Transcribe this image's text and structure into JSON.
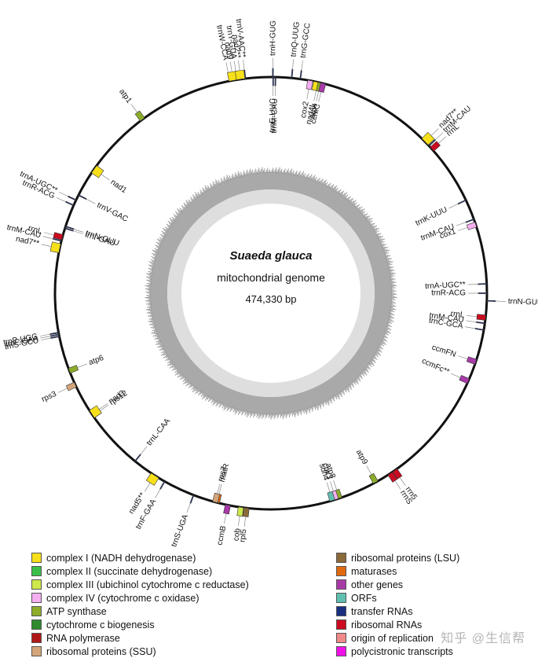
{
  "center": {
    "title": "Suaeda glauca",
    "subtitle": "mitochondrial genome",
    "size": "474,330 bp"
  },
  "genes": [
    {
      "id": "trnW-CCA",
      "label": "trnW-CCA",
      "cat": "trna",
      "pos": 349.0,
      "side": "out"
    },
    {
      "id": "nad9",
      "label": "nad9",
      "cat": "complexI",
      "pos": 350.0,
      "side": "out"
    },
    {
      "id": "trnY-GUA",
      "label": "trnY-GUA",
      "cat": "trna",
      "pos": 351.0,
      "side": "out"
    },
    {
      "id": "nad2",
      "label": "nad2**",
      "cat": "complexI",
      "pos": 352.0,
      "side": "out"
    },
    {
      "id": "trnV-AAC",
      "label": "trnV-AAC**",
      "cat": "trna",
      "pos": 353.2,
      "side": "out"
    },
    {
      "id": "trnH-GUG",
      "label": "trnH-GUG",
      "cat": "trna",
      "pos": 0.5,
      "side": "out"
    },
    {
      "id": "trnQ-UUG",
      "label": "trnQ-UUG",
      "cat": "trna",
      "pos": 5.5,
      "side": "out"
    },
    {
      "id": "trnG-GCC",
      "label": "trnG-GCC",
      "cat": "trna",
      "pos": 7.8,
      "side": "out"
    },
    {
      "id": "trnE-UUC",
      "label": "trnE-UUC",
      "cat": "trna",
      "pos": 0.6,
      "side": "in"
    },
    {
      "id": "trnM-CAU-1",
      "label": "trnM-CAU",
      "cat": "trna",
      "pos": 1.2,
      "side": "in"
    },
    {
      "id": "cox2",
      "label": "cox2",
      "cat": "complexIV",
      "pos": 10.5,
      "side": "in"
    },
    {
      "id": "nad4L",
      "label": "nad4L",
      "cat": "complexI",
      "pos": 12.6,
      "side": "in"
    },
    {
      "id": "atp4",
      "label": "atp4",
      "cat": "atp",
      "pos": 13.3,
      "side": "in"
    },
    {
      "id": "ccmC",
      "label": "ccmC",
      "cat": "other",
      "pos": 14.0,
      "side": "in"
    },
    {
      "id": "nad7-1",
      "label": "nad7**",
      "cat": "complexI",
      "pos": 45.5,
      "side": "out"
    },
    {
      "id": "rrnL-1",
      "label": "rrnL",
      "cat": "rrna",
      "pos": 48.2,
      "side": "out"
    },
    {
      "id": "trnM-CAU-2",
      "label": "trnM-CAU",
      "cat": "trna",
      "pos": 47.0,
      "side": "out"
    },
    {
      "id": "trnK-UUU",
      "label": "trnK-UUU",
      "cat": "trna",
      "pos": 64.5,
      "side": "in"
    },
    {
      "id": "trnM-CAU-3",
      "label": "trnM-CAU",
      "cat": "trna",
      "pos": 70.0,
      "side": "in"
    },
    {
      "id": "cox1",
      "label": "cox1",
      "cat": "complexIV",
      "pos": 71.5,
      "side": "in"
    },
    {
      "id": "trnA-UGC-1",
      "label": "trnA-UGC**",
      "cat": "trna",
      "pos": 87.5,
      "side": "in"
    },
    {
      "id": "trnR-ACG-1",
      "label": "trnR-ACG",
      "cat": "trna",
      "pos": 90.0,
      "side": "in"
    },
    {
      "id": "trnN-GUU-1",
      "label": "trnN-GUU",
      "cat": "trna",
      "pos": 92.0,
      "side": "out"
    },
    {
      "id": "rrnL-2",
      "label": "rrnL",
      "cat": "rrna",
      "pos": 96.5,
      "side": "in"
    },
    {
      "id": "trnM-CAU-4",
      "label": "trnM-CAU",
      "cat": "trna",
      "pos": 98.0,
      "side": "in"
    },
    {
      "id": "trnC-GCA",
      "label": "trnC-GCA",
      "cat": "trna",
      "pos": 99.8,
      "side": "in"
    },
    {
      "id": "ccmFN",
      "label": "ccmFN",
      "cat": "other",
      "pos": 108.5,
      "side": "in"
    },
    {
      "id": "ccmFc",
      "label": "ccmFc**",
      "cat": "other",
      "pos": 114.0,
      "side": "in"
    },
    {
      "id": "rrn5",
      "label": "rrn5",
      "cat": "rrna",
      "pos": 145.0,
      "side": "out"
    },
    {
      "id": "rrnS",
      "label": "rrnS",
      "cat": "rrna",
      "pos": 146.5,
      "side": "out"
    },
    {
      "id": "atp9",
      "label": "atp9",
      "cat": "atp",
      "pos": 151.0,
      "side": "in"
    },
    {
      "id": "atp8",
      "label": "atp8",
      "cat": "atp",
      "pos": 161.5,
      "side": "in"
    },
    {
      "id": "cox3",
      "label": "cox3",
      "cat": "complexIV",
      "pos": 162.5,
      "side": "in"
    },
    {
      "id": "sdh4",
      "label": "sdh4",
      "cat": "orf",
      "pos": 163.5,
      "side": "in"
    },
    {
      "id": "rpl5",
      "label": "rpl5",
      "cat": "rpl",
      "pos": 186.5,
      "side": "out"
    },
    {
      "id": "cob",
      "label": "cob",
      "cat": "complexIII",
      "pos": 188.0,
      "side": "out"
    },
    {
      "id": "ccmB",
      "label": "ccmB",
      "cat": "other",
      "pos": 191.5,
      "side": "out"
    },
    {
      "id": "matR",
      "label": "matR",
      "cat": "maturase",
      "pos": 194.5,
      "side": "in"
    },
    {
      "id": "rps7",
      "label": "rps7",
      "cat": "rps",
      "pos": 195.0,
      "side": "in"
    },
    {
      "id": "trnS-UGA",
      "label": "trnS-UGA",
      "cat": "trna",
      "pos": 201.0,
      "side": "out"
    },
    {
      "id": "trnF-GAA-1",
      "label": "trnF-GAA",
      "cat": "trna",
      "pos": 209.5,
      "side": "out"
    },
    {
      "id": "nad5",
      "label": "nad5**",
      "cat": "complexI",
      "pos": 212.5,
      "side": "out"
    },
    {
      "id": "trnL-CAA",
      "label": "trnL-CAA",
      "cat": "trna",
      "pos": 219.0,
      "side": "in"
    },
    {
      "id": "rps12",
      "label": "rps12",
      "cat": "rps",
      "pos": 235.5,
      "side": "in"
    },
    {
      "id": "nad3",
      "label": "nad3",
      "cat": "complexI",
      "pos": 236.0,
      "side": "in"
    },
    {
      "id": "rps3",
      "label": "rps3",
      "cat": "rps",
      "pos": 245.0,
      "side": "out"
    },
    {
      "id": "atp6",
      "label": "atp6",
      "cat": "atp",
      "pos": 249.0,
      "side": "in"
    },
    {
      "id": "trnS-GCU",
      "label": "trnS-GCU",
      "cat": "trna",
      "pos": 258.5,
      "side": "out"
    },
    {
      "id": "trnF-GAA-2",
      "label": "trnF-GAA",
      "cat": "trna",
      "pos": 259.0,
      "side": "out"
    },
    {
      "id": "trnP-UGG",
      "label": "trnP-UGG",
      "cat": "trna",
      "pos": 259.5,
      "side": "out"
    },
    {
      "id": "nad7-2",
      "label": "nad7**",
      "cat": "complexI",
      "pos": 282.0,
      "side": "out"
    },
    {
      "id": "trnM-CAU-5",
      "label": "trnM-CAU",
      "cat": "trna",
      "pos": 284.0,
      "side": "out"
    },
    {
      "id": "rrnL-3",
      "label": "rrnL",
      "cat": "rrna",
      "pos": 285.0,
      "side": "out"
    },
    {
      "id": "trnI-GAU",
      "label": "trnI-GAU",
      "cat": "trna",
      "pos": 287.5,
      "side": "in"
    },
    {
      "id": "trnN-GUU-2",
      "label": "trnN-GUU",
      "cat": "trna",
      "pos": 288.0,
      "side": "in"
    },
    {
      "id": "trnR-ACG-2",
      "label": "trnR-ACG",
      "cat": "trna",
      "pos": 294.0,
      "side": "out"
    },
    {
      "id": "trnA-UGC-2",
      "label": "trnA-UGC**",
      "cat": "trna",
      "pos": 295.5,
      "side": "out"
    },
    {
      "id": "trnV-GAC",
      "label": "trnV-GAC",
      "cat": "trna",
      "pos": 297.0,
      "side": "in"
    },
    {
      "id": "nad1",
      "label": "nad1",
      "cat": "complexI",
      "pos": 305.0,
      "side": "in"
    },
    {
      "id": "atp1",
      "label": "atp1",
      "cat": "atp",
      "pos": 323.5,
      "side": "out"
    }
  ],
  "categories": {
    "complexI": "#f7e019",
    "complexII": "#3cbf4a",
    "complexIII": "#cde84a",
    "complexIV": "#f5aef0",
    "atp": "#8dac2a",
    "ccm": "#2d8b2d",
    "rnapol": "#b01818",
    "rps": "#d4a57a",
    "rpl": "#8b6a3a",
    "maturase": "#e06a10",
    "other": "#a83aa8",
    "orf": "#60c0b0",
    "trna": "#1a2f80",
    "rrna": "#cc0a20",
    "ori": "#f08a8a",
    "poly": "#f010e8"
  },
  "legend": {
    "left": [
      {
        "label": "complex I (NADH dehydrogenase)",
        "color": "#f7e019"
      },
      {
        "label": "complex II (succinate dehydrogenase)",
        "color": "#3cbf4a"
      },
      {
        "label": "complex III (ubichinol cytochrome c reductase)",
        "color": "#cde84a"
      },
      {
        "label": "complex IV (cytochrome c oxidase)",
        "color": "#f5aef0"
      },
      {
        "label": "ATP synthase",
        "color": "#8dac2a"
      },
      {
        "label": "cytochrome c biogenesis",
        "color": "#2d8b2d"
      },
      {
        "label": "RNA polymerase",
        "color": "#b01818"
      },
      {
        "label": "ribosomal proteins (SSU)",
        "color": "#d4a57a"
      }
    ],
    "right": [
      {
        "label": "ribosomal proteins (LSU)",
        "color": "#8b6a3a"
      },
      {
        "label": "maturases",
        "color": "#e06a10"
      },
      {
        "label": "other genes",
        "color": "#a83aa8"
      },
      {
        "label": "ORFs",
        "color": "#60c0b0"
      },
      {
        "label": "transfer RNAs",
        "color": "#1a2f80"
      },
      {
        "label": "ribosomal RNAs",
        "color": "#cc0a20"
      },
      {
        "label": "origin of replication",
        "color": "#f08a8a"
      },
      {
        "label": "polycistronic transcripts",
        "color": "#f010e8"
      }
    ]
  },
  "watermark": "知乎 @生信帮"
}
